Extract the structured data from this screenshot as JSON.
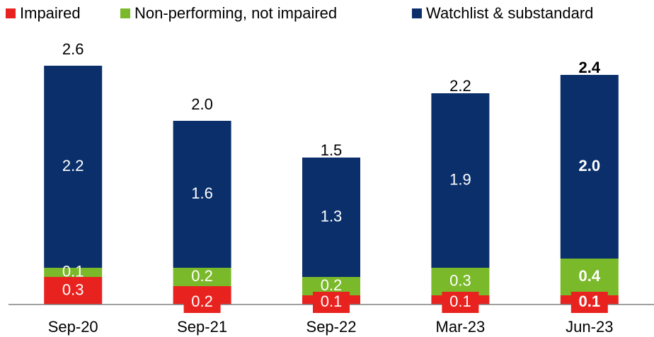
{
  "chart_data": {
    "type": "stacked_bar",
    "categories": [
      "Sep-20",
      "Sep-21",
      "Sep-22",
      "Mar-23",
      "Jun-23"
    ],
    "series": [
      {
        "name": "Impaired",
        "color": "#e8231f",
        "values": [
          0.3,
          0.2,
          0.1,
          0.1,
          0.1
        ],
        "value_labels": [
          "0.3",
          "0.2",
          "0.1",
          "0.1",
          "0.1"
        ]
      },
      {
        "name": "Non-performing, not impaired",
        "color": "#7ab929",
        "values": [
          0.1,
          0.2,
          0.2,
          0.3,
          0.4
        ],
        "value_labels": [
          "0.1",
          "0.2",
          "0.2",
          "0.3",
          "0.4"
        ]
      },
      {
        "name": "Watchlist & substandard",
        "color": "#0a2f6b",
        "values": [
          2.2,
          1.6,
          1.3,
          1.9,
          2.0
        ],
        "value_labels": [
          "2.2",
          "1.6",
          "1.3",
          "1.9",
          "2.0"
        ]
      }
    ],
    "totals": [
      2.6,
      2.0,
      1.5,
      2.2,
      2.4
    ],
    "total_labels": [
      "2.6",
      "2.0",
      "1.5",
      "2.2",
      "2.4"
    ],
    "ylim": [
      0,
      2.6
    ],
    "bold_last": true,
    "legend": "top"
  }
}
